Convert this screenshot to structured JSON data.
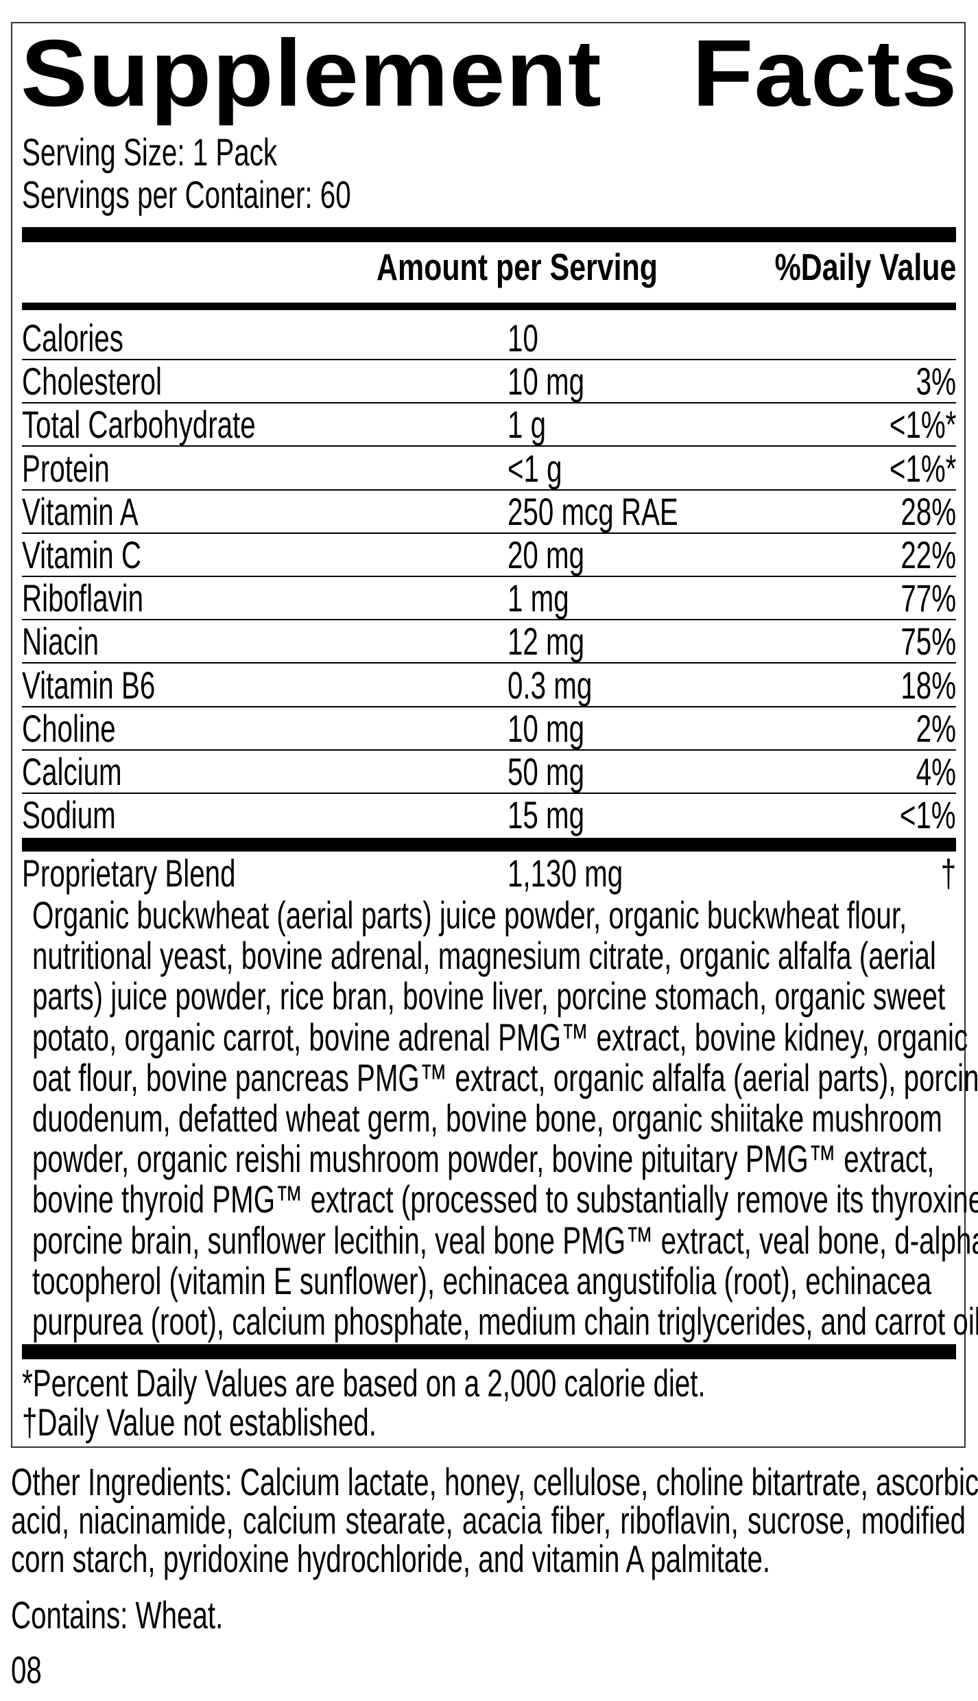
{
  "title": {
    "word1": "Supplement",
    "word2": "Facts"
  },
  "serving_size": "Serving Size: 1 Pack",
  "servings_per_container": "Servings per Container: 60",
  "header": {
    "amount": "Amount per Serving",
    "dv": "%Daily Value"
  },
  "nutrients": [
    {
      "name": "Calories",
      "amount": "10",
      "dv": ""
    },
    {
      "name": "Cholesterol",
      "amount": "10 mg",
      "dv": "3%"
    },
    {
      "name": "Total Carbohydrate",
      "amount": "1 g",
      "dv": "<1%*"
    },
    {
      "name": "Protein",
      "amount": "<1 g",
      "dv": "<1%*"
    },
    {
      "name": "Vitamin A",
      "amount": "250 mcg RAE",
      "dv": "28%"
    },
    {
      "name": "Vitamin C",
      "amount": "20 mg",
      "dv": "22%"
    },
    {
      "name": "Riboflavin",
      "amount": "1 mg",
      "dv": "77%"
    },
    {
      "name": "Niacin",
      "amount": "12 mg",
      "dv": "75%"
    },
    {
      "name": "Vitamin B6",
      "amount": "0.3 mg",
      "dv": "18%"
    },
    {
      "name": "Choline",
      "amount": "10 mg",
      "dv": "2%"
    },
    {
      "name": "Calcium",
      "amount": "50 mg",
      "dv": "4%"
    },
    {
      "name": "Sodium",
      "amount": "15 mg",
      "dv": "<1%"
    }
  ],
  "blend": {
    "name": "Proprietary Blend",
    "amount": "1,130 mg",
    "dv": "†",
    "ingredient_lines": [
      "Organic buckwheat (aerial parts) juice powder, organic buckwheat flour,",
      "nutritional yeast, bovine adrenal, magnesium citrate, organic alfalfa (aerial",
      "parts) juice powder, rice bran, bovine liver, porcine stomach, organic sweet",
      "potato, organic carrot, bovine adrenal PMG™ extract, bovine kidney, organic",
      "oat flour, bovine pancreas PMG™ extract, organic alfalfa (aerial parts), porcine",
      "duodenum, defatted wheat germ, bovine bone, organic shiitake mushroom",
      "powder, organic reishi mushroom powder, bovine pituitary PMG™ extract,",
      "bovine thyroid PMG™ extract (processed to substantially remove its thyroxine),",
      "porcine brain, sunflower lecithin, veal bone PMG™ extract, veal bone, d-alpha",
      "tocopherol (vitamin E sunflower), echinacea angustifolia (root), echinacea",
      "purpurea (root), calcium phosphate, medium chain triglycerides, and carrot oil."
    ]
  },
  "footnotes": [
    "*Percent Daily Values are based on a 2,000 calorie diet.",
    "†Daily Value not established."
  ],
  "other_ingredients_lines": [
    "Other Ingredients: Calcium lactate, honey, cellulose, choline bitartrate, ascorbic",
    "acid, niacinamide, calcium stearate, acacia fiber, riboflavin, sucrose, modified",
    "corn starch, pyridoxine hydrochloride, and vitamin A palmitate."
  ],
  "contains": "Contains: Wheat.",
  "code": "08"
}
